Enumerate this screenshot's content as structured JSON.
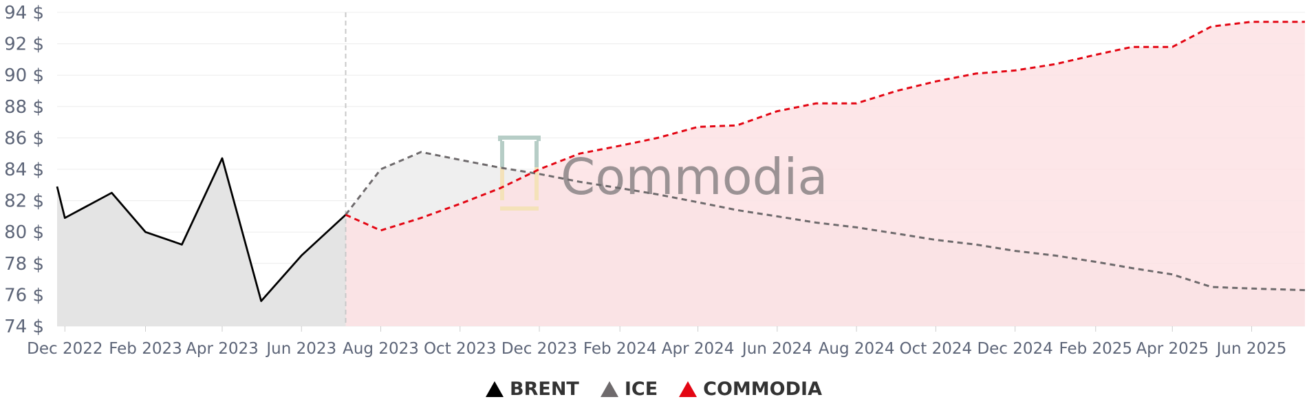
{
  "chart_data": {
    "type": "line",
    "y_ticks": [
      "74 $",
      "76 $",
      "78 $",
      "80 $",
      "82 $",
      "84 $",
      "86 $",
      "88 $",
      "90 $",
      "92 $",
      "94 $"
    ],
    "ylim": [
      74,
      94
    ],
    "x_ticks": [
      {
        "date": "2022-12-01",
        "label": "Dec 2022"
      },
      {
        "date": "2023-02-01",
        "label": "Feb 2023"
      },
      {
        "date": "2023-04-01",
        "label": "Apr 2023"
      },
      {
        "date": "2023-06-01",
        "label": "Jun 2023"
      },
      {
        "date": "2023-08-01",
        "label": "Aug 2023"
      },
      {
        "date": "2023-10-01",
        "label": "Oct 2023"
      },
      {
        "date": "2023-12-01",
        "label": "Dec 2023"
      },
      {
        "date": "2024-02-01",
        "label": "Feb 2024"
      },
      {
        "date": "2024-04-01",
        "label": "Apr 2024"
      },
      {
        "date": "2024-06-01",
        "label": "Jun 2024"
      },
      {
        "date": "2024-08-01",
        "label": "Aug 2024"
      },
      {
        "date": "2024-10-01",
        "label": "Oct 2024"
      },
      {
        "date": "2024-12-01",
        "label": "Dec 2024"
      },
      {
        "date": "2025-02-01",
        "label": "Feb 2025"
      },
      {
        "date": "2025-04-01",
        "label": "Apr 2025"
      },
      {
        "date": "2025-06-01",
        "label": "Jun 2025"
      }
    ],
    "xlim": [
      "2022-11-25",
      "2025-07-12"
    ],
    "forecast_start": "2023-07-05",
    "grid": true,
    "legend_position": "bottom",
    "series": [
      {
        "name": "BRENT",
        "color": "#000000",
        "dashed": false,
        "fill": "#e4e4e4",
        "points": [
          [
            "2022-11-25",
            82.9
          ],
          [
            "2022-12-01",
            80.9
          ],
          [
            "2023-01-06",
            82.5
          ],
          [
            "2023-02-01",
            80.0
          ],
          [
            "2023-03-01",
            79.2
          ],
          [
            "2023-04-01",
            84.7
          ],
          [
            "2023-05-01",
            75.6
          ],
          [
            "2023-06-01",
            78.5
          ],
          [
            "2023-07-05",
            81.1
          ]
        ]
      },
      {
        "name": "ICE",
        "color": "#6e6a6c",
        "dashed": true,
        "fill": "#efefef",
        "points": [
          [
            "2023-07-05",
            81.1
          ],
          [
            "2023-08-01",
            84.0
          ],
          [
            "2023-09-01",
            85.1
          ],
          [
            "2023-10-01",
            84.6
          ],
          [
            "2023-11-01",
            84.1
          ],
          [
            "2023-12-01",
            83.7
          ],
          [
            "2024-01-01",
            83.2
          ],
          [
            "2024-02-01",
            82.8
          ],
          [
            "2024-03-01",
            82.4
          ],
          [
            "2024-04-01",
            81.9
          ],
          [
            "2024-05-01",
            81.4
          ],
          [
            "2024-06-01",
            81.0
          ],
          [
            "2024-07-01",
            80.6
          ],
          [
            "2024-08-01",
            80.3
          ],
          [
            "2024-09-01",
            79.9
          ],
          [
            "2024-10-01",
            79.5
          ],
          [
            "2024-11-01",
            79.2
          ],
          [
            "2024-12-01",
            78.8
          ],
          [
            "2025-01-01",
            78.5
          ],
          [
            "2025-02-01",
            78.1
          ],
          [
            "2025-03-01",
            77.7
          ],
          [
            "2025-04-01",
            77.3
          ],
          [
            "2025-05-01",
            76.5
          ],
          [
            "2025-06-01",
            76.4
          ],
          [
            "2025-07-12",
            76.3
          ]
        ]
      },
      {
        "name": "COMMODIA",
        "color": "#e30613",
        "dashed": true,
        "fill": "#fde1e3",
        "points": [
          [
            "2023-07-05",
            81.1
          ],
          [
            "2023-08-01",
            80.1
          ],
          [
            "2023-09-01",
            80.9
          ],
          [
            "2023-10-01",
            81.8
          ],
          [
            "2023-11-01",
            82.8
          ],
          [
            "2023-12-01",
            84.0
          ],
          [
            "2024-01-01",
            85.0
          ],
          [
            "2024-02-01",
            85.5
          ],
          [
            "2024-03-01",
            86.0
          ],
          [
            "2024-04-01",
            86.7
          ],
          [
            "2024-05-01",
            86.8
          ],
          [
            "2024-06-01",
            87.7
          ],
          [
            "2024-07-01",
            88.2
          ],
          [
            "2024-08-01",
            88.2
          ],
          [
            "2024-09-01",
            89.0
          ],
          [
            "2024-10-01",
            89.6
          ],
          [
            "2024-11-01",
            90.1
          ],
          [
            "2024-12-01",
            90.3
          ],
          [
            "2025-01-01",
            90.7
          ],
          [
            "2025-02-01",
            91.3
          ],
          [
            "2025-03-01",
            91.8
          ],
          [
            "2025-04-01",
            91.8
          ],
          [
            "2025-05-01",
            93.1
          ],
          [
            "2025-06-01",
            93.4
          ],
          [
            "2025-07-12",
            93.4
          ]
        ]
      }
    ]
  },
  "watermark": {
    "text": "Commodia"
  },
  "legend": {
    "items": [
      {
        "label": "BRENT",
        "color": "#000000"
      },
      {
        "label": "ICE",
        "color": "#6e6a6c"
      },
      {
        "label": "COMMODIA",
        "color": "#e30613"
      }
    ]
  }
}
